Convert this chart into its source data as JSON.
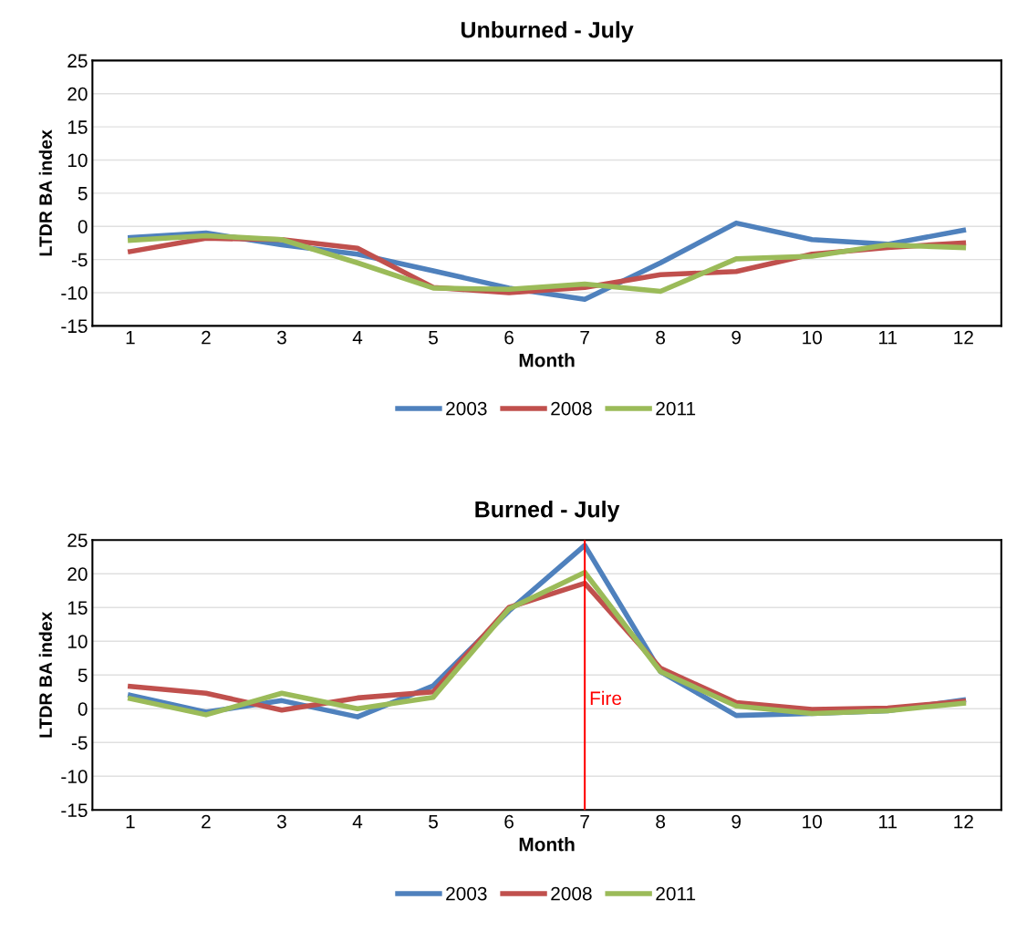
{
  "chart_data": [
    {
      "type": "line",
      "title": "Unburned - July",
      "xlabel": "Month",
      "ylabel": "LTDR BA index",
      "x": [
        1,
        2,
        3,
        4,
        5,
        6,
        7,
        8,
        9,
        10,
        11,
        12
      ],
      "xlim": [
        0.5,
        12.5
      ],
      "xticks": [
        1,
        2,
        3,
        4,
        5,
        6,
        7,
        8,
        9,
        10,
        11,
        12
      ],
      "ylim": [
        -15,
        25
      ],
      "yticks": [
        -15,
        -10,
        -5,
        0,
        5,
        10,
        15,
        20,
        25
      ],
      "grid": "y",
      "legend": "bottom",
      "marker": "none",
      "line_style": "solid",
      "series": [
        {
          "name": "2003",
          "color": "#4f81bd",
          "values": [
            -1.7,
            -1,
            -2.8,
            -4.2,
            -6.7,
            -9.3,
            -11,
            -5.5,
            0.5,
            -2,
            -2.7,
            -0.6
          ]
        },
        {
          "name": "2008",
          "color": "#c0504d",
          "values": [
            -3.8,
            -1.8,
            -2,
            -3.3,
            -9.2,
            -10,
            -9.2,
            -7.3,
            -6.8,
            -4.2,
            -3.2,
            -2.5
          ]
        },
        {
          "name": "2011",
          "color": "#9bbb59",
          "values": [
            -2.1,
            -1.4,
            -2,
            -5.5,
            -9.3,
            -9.5,
            -8.7,
            -9.8,
            -4.9,
            -4.5,
            -2.8,
            -3.2
          ]
        }
      ]
    },
    {
      "type": "line",
      "title": "Burned - July",
      "xlabel": "Month",
      "ylabel": "LTDR BA index",
      "x": [
        1,
        2,
        3,
        4,
        5,
        6,
        7,
        8,
        9,
        10,
        11,
        12
      ],
      "xlim": [
        0.5,
        12.5
      ],
      "xticks": [
        1,
        2,
        3,
        4,
        5,
        6,
        7,
        8,
        9,
        10,
        11,
        12
      ],
      "ylim": [
        -15,
        25
      ],
      "yticks": [
        -15,
        -10,
        -5,
        0,
        5,
        10,
        15,
        20,
        25
      ],
      "grid": "y",
      "legend": "bottom",
      "marker": "none",
      "line_style": "solid",
      "ref_lines": [
        {
          "axis": "x",
          "value": 7,
          "label": "Fire",
          "color": "#ff0000"
        }
      ],
      "series": [
        {
          "name": "2003",
          "color": "#4f81bd",
          "values": [
            2,
            -0.5,
            1.2,
            -1.2,
            3.4,
            14.5,
            24.2,
            5.5,
            -1,
            -0.7,
            -0.3,
            1.3
          ]
        },
        {
          "name": "2008",
          "color": "#c0504d",
          "values": [
            3.3,
            2.3,
            -0.2,
            1.6,
            2.5,
            15,
            18.6,
            6,
            0.9,
            -0.1,
            0.1,
            1.1
          ]
        },
        {
          "name": "2011",
          "color": "#9bbb59",
          "values": [
            1.5,
            -0.9,
            2.3,
            0,
            1.7,
            14.8,
            20.2,
            5.5,
            0.4,
            -0.7,
            -0.3,
            0.8
          ]
        }
      ]
    }
  ]
}
